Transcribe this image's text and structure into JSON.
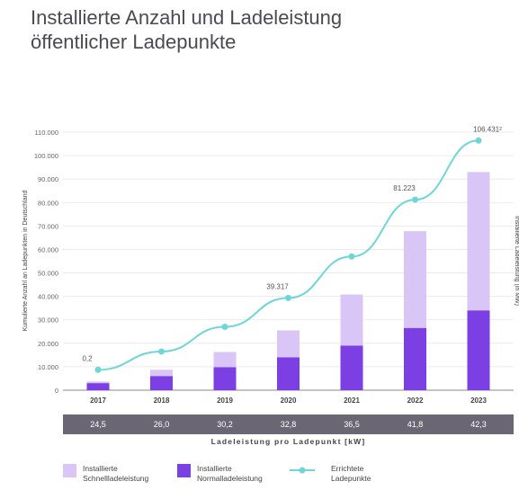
{
  "header": {
    "title_line1": "Installierte Anzahl und Ladeleistung",
    "title_line2": "öffentlicher Ladepunkte"
  },
  "chart_data": {
    "type": "bar",
    "stacked": true,
    "categories": [
      "2017",
      "2018",
      "2019",
      "2020",
      "2021",
      "2022",
      "2023"
    ],
    "series": [
      {
        "name": "Installierte Normalladeleistung",
        "kind": "bar",
        "color": "#7b3fe4",
        "values": [
          3000,
          6000,
          9800,
          14000,
          19000,
          26500,
          34000
        ]
      },
      {
        "name": "Installierte Schnellladeleistung",
        "kind": "bar",
        "color": "#d9c6f7",
        "values": [
          700,
          2700,
          6500,
          11500,
          21800,
          41300,
          59000
        ]
      },
      {
        "name": "Errichtete Ladepunkte",
        "kind": "line",
        "color": "#6fd6d6",
        "values": [
          8700,
          16500,
          27000,
          39317,
          57000,
          81223,
          106431
        ]
      }
    ],
    "ylabel": "Kumulierte Anzahl an Ladepunkten in Deutschland",
    "y2label": "Installierte Ladeleistung (in MW)",
    "ylim": [
      0,
      110000
    ],
    "yticks": [
      "0",
      "10.000",
      "20.000",
      "30.000",
      "40.000",
      "50.000",
      "60.000",
      "70.000",
      "80.000",
      "90.000",
      "100.000",
      "110.000"
    ],
    "annotations": [
      "0,2",
      "39.317",
      "81.223",
      "106.431²"
    ],
    "kw_per_point_label": "Ladeleistung pro Ladepunkt [kW]",
    "kw_per_point": [
      "24,5",
      "26,0",
      "30,2",
      "32,8",
      "36,5",
      "41,8",
      "42,3"
    ],
    "grid": true
  },
  "legend": {
    "items": [
      {
        "label": "Installierte\nSchnellladeleistung",
        "color": "#d9c6f7",
        "kind": "box"
      },
      {
        "label": "Installierte\nNormalladeleistung",
        "color": "#7b3fe4",
        "kind": "box"
      },
      {
        "label": "Errichtete\nLadepunkte",
        "color": "#6fd6d6",
        "kind": "line"
      }
    ]
  }
}
